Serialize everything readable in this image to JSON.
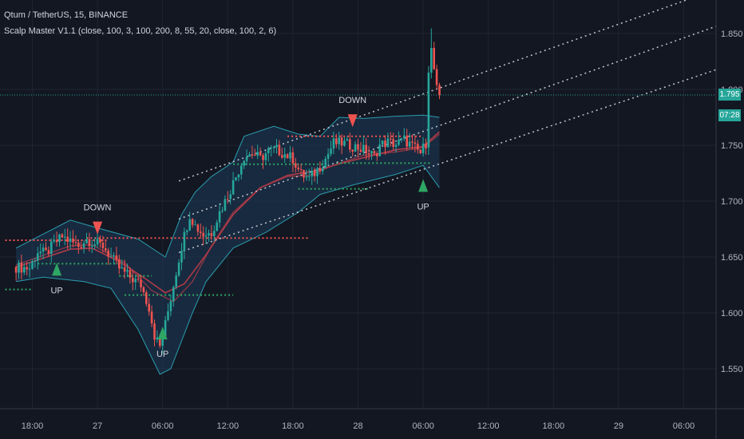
{
  "legend": {
    "symbol_line": "Qtum / TetherUS, 15, BINANCE",
    "indicator_line": "Scalp Master V1.1 (close, 100, 3, 100, 200, 8, 55, 20, close, 100, 2, 6)"
  },
  "colors": {
    "background": "#131722",
    "grid": "#1f2433",
    "up_candle": "#26a69a",
    "down_candle": "#ef5350",
    "band_fill": "#1d3a57",
    "band_line": "#2a9dae",
    "ma_line": "#b03a48",
    "channel": "#e0e3eb",
    "buy_signal": "#2ea664",
    "sell_signal": "#ef5350",
    "price_line": "#26a69a"
  },
  "price_badge": {
    "price": "1.795",
    "countdown": "07:28"
  },
  "chart_data": {
    "type": "candlestick",
    "symbol": "Qtum / TetherUS",
    "interval": "15",
    "exchange": "BINANCE",
    "y_ticks": [
      "1.850",
      "1.800",
      "1.750",
      "1.700",
      "1.650",
      "1.600",
      "1.550"
    ],
    "x_ticks": [
      {
        "label": "18:00",
        "t": 6
      },
      {
        "label": "27",
        "t": 30
      },
      {
        "label": "06:00",
        "t": 54
      },
      {
        "label": "12:00",
        "t": 78
      },
      {
        "label": "18:00",
        "t": 102
      },
      {
        "label": "28",
        "t": 126
      },
      {
        "label": "06:00",
        "t": 150
      },
      {
        "label": "12:00",
        "t": 174
      },
      {
        "label": "18:00",
        "t": 198
      },
      {
        "label": "29",
        "t": 222
      },
      {
        "label": "06:00",
        "t": 246
      }
    ],
    "ylim": [
      1.52,
      1.875
    ],
    "xlim": [
      -4,
      262
    ],
    "anchors": [
      [
        0,
        1.641
      ],
      [
        5,
        1.64
      ],
      [
        8,
        1.655
      ],
      [
        11,
        1.653
      ],
      [
        14,
        1.662
      ],
      [
        17,
        1.668
      ],
      [
        20,
        1.664
      ],
      [
        23,
        1.66
      ],
      [
        26,
        1.666
      ],
      [
        29,
        1.662
      ],
      [
        32,
        1.66
      ],
      [
        35,
        1.65
      ],
      [
        38,
        1.64
      ],
      [
        42,
        1.632
      ],
      [
        46,
        1.625
      ],
      [
        49,
        1.605
      ],
      [
        51,
        1.58
      ],
      [
        53,
        1.57
      ],
      [
        55,
        1.59
      ],
      [
        58,
        1.625
      ],
      [
        61,
        1.66
      ],
      [
        64,
        1.688
      ],
      [
        66,
        1.678
      ],
      [
        69,
        1.67
      ],
      [
        72,
        1.672
      ],
      [
        75,
        1.69
      ],
      [
        78,
        1.705
      ],
      [
        81,
        1.722
      ],
      [
        84,
        1.74
      ],
      [
        87,
        1.743
      ],
      [
        90,
        1.738
      ],
      [
        93,
        1.745
      ],
      [
        96,
        1.746
      ],
      [
        99,
        1.742
      ],
      [
        102,
        1.738
      ],
      [
        105,
        1.724
      ],
      [
        108,
        1.72
      ],
      [
        111,
        1.728
      ],
      [
        114,
        1.738
      ],
      [
        117,
        1.752
      ],
      [
        120,
        1.752
      ],
      [
        123,
        1.75
      ],
      [
        126,
        1.748
      ],
      [
        129,
        1.745
      ],
      [
        132,
        1.74
      ],
      [
        134,
        1.75
      ],
      [
        137,
        1.753
      ],
      [
        140,
        1.751
      ],
      [
        143,
        1.755
      ],
      [
        146,
        1.749
      ],
      [
        149,
        1.743
      ],
      [
        151,
        1.752
      ],
      [
        152,
        1.808
      ],
      [
        153,
        1.835
      ],
      [
        154,
        1.818
      ],
      [
        155,
        1.8
      ],
      [
        156,
        1.795
      ]
    ],
    "candles_from_anchor_path": true,
    "bollinger": {
      "upper": [
        [
          0,
          1.658
        ],
        [
          20,
          1.683
        ],
        [
          30,
          1.676
        ],
        [
          45,
          1.666
        ],
        [
          55,
          1.65
        ],
        [
          61,
          1.688
        ],
        [
          66,
          1.708
        ],
        [
          72,
          1.722
        ],
        [
          80,
          1.735
        ],
        [
          84,
          1.758
        ],
        [
          95,
          1.767
        ],
        [
          104,
          1.76
        ],
        [
          112,
          1.758
        ],
        [
          119,
          1.775
        ],
        [
          128,
          1.774
        ],
        [
          140,
          1.776
        ],
        [
          150,
          1.777
        ],
        [
          156,
          1.775
        ]
      ],
      "lower": [
        [
          0,
          1.628
        ],
        [
          10,
          1.632
        ],
        [
          25,
          1.628
        ],
        [
          35,
          1.622
        ],
        [
          45,
          1.585
        ],
        [
          53,
          1.545
        ],
        [
          57,
          1.55
        ],
        [
          65,
          1.6
        ],
        [
          70,
          1.628
        ],
        [
          80,
          1.658
        ],
        [
          92,
          1.672
        ],
        [
          104,
          1.69
        ],
        [
          112,
          1.706
        ],
        [
          125,
          1.715
        ],
        [
          140,
          1.724
        ],
        [
          150,
          1.732
        ],
        [
          156,
          1.712
        ]
      ],
      "middle": [
        [
          0,
          1.643
        ],
        [
          20,
          1.66
        ],
        [
          28,
          1.661
        ],
        [
          40,
          1.645
        ],
        [
          50,
          1.62
        ],
        [
          58,
          1.61
        ],
        [
          65,
          1.628
        ],
        [
          72,
          1.66
        ],
        [
          80,
          1.69
        ],
        [
          90,
          1.712
        ],
        [
          100,
          1.722
        ],
        [
          108,
          1.723
        ],
        [
          118,
          1.733
        ],
        [
          128,
          1.741
        ],
        [
          140,
          1.744
        ],
        [
          150,
          1.748
        ],
        [
          156,
          1.76
        ]
      ]
    },
    "ma": [
      [
        0,
        1.641
      ],
      [
        10,
        1.649
      ],
      [
        20,
        1.657
      ],
      [
        28,
        1.658
      ],
      [
        38,
        1.646
      ],
      [
        48,
        1.63
      ],
      [
        55,
        1.618
      ],
      [
        62,
        1.626
      ],
      [
        70,
        1.652
      ],
      [
        80,
        1.688
      ],
      [
        90,
        1.712
      ],
      [
        100,
        1.723
      ],
      [
        110,
        1.727
      ],
      [
        120,
        1.734
      ],
      [
        130,
        1.74
      ],
      [
        140,
        1.746
      ],
      [
        150,
        1.749
      ],
      [
        156,
        1.762
      ]
    ],
    "channel_lines": [
      {
        "x": [
          60,
          262
        ],
        "y": [
          1.718,
          1.893
        ]
      },
      {
        "x": [
          60,
          262
        ],
        "y": [
          1.684,
          1.86
        ]
      },
      {
        "x": [
          60,
          262
        ],
        "y": [
          1.654,
          1.821
        ]
      }
    ],
    "level_lines": [
      {
        "type": "sell",
        "x": [
          -4,
          34
        ],
        "y": 1.665
      },
      {
        "type": "sell",
        "x": [
          26,
          108
        ],
        "y": 1.667
      },
      {
        "type": "sell",
        "x": [
          100,
          150
        ],
        "y": 1.758
      },
      {
        "type": "buy",
        "x": [
          -4,
          6
        ],
        "y": 1.621
      },
      {
        "type": "buy",
        "x": [
          8,
          38
        ],
        "y": 1.644
      },
      {
        "type": "buy",
        "x": [
          38,
          50
        ],
        "y": 1.633
      },
      {
        "type": "buy",
        "x": [
          40,
          80
        ],
        "y": 1.616
      },
      {
        "type": "buy",
        "x": [
          80,
          114
        ],
        "y": 1.733
      },
      {
        "type": "buy",
        "x": [
          104,
          130
        ],
        "y": 1.711
      },
      {
        "type": "buy",
        "x": [
          118,
          153
        ],
        "y": 1.734
      }
    ],
    "signals": [
      {
        "type": "up",
        "label": "UP",
        "t": 15,
        "price": 1.639
      },
      {
        "type": "down",
        "label": "DOWN",
        "t": 30,
        "price": 1.676
      },
      {
        "type": "up",
        "label": "UP",
        "t": 54,
        "price": 1.582
      },
      {
        "type": "down",
        "label": "DOWN",
        "t": 124,
        "price": 1.772
      },
      {
        "type": "up",
        "label": "UP",
        "t": 150,
        "price": 1.714
      }
    ],
    "current_price": 1.795
  }
}
